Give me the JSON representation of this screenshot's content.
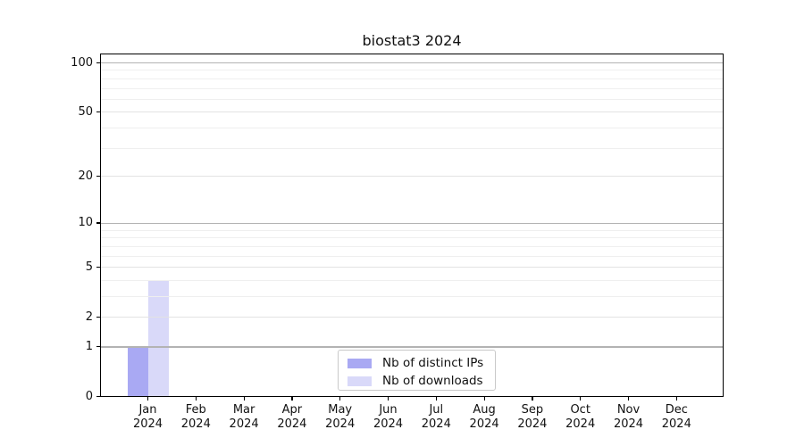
{
  "figure": {
    "title": "biostat3 2024"
  },
  "chart_data": {
    "type": "bar",
    "title": "biostat3 2024",
    "categories": [
      "Jan",
      "Feb",
      "Mar",
      "Apr",
      "May",
      "Jun",
      "Jul",
      "Aug",
      "Sep",
      "Oct",
      "Nov",
      "Dec"
    ],
    "category_year": "2024",
    "series": [
      {
        "name": "Nb of distinct IPs",
        "color": "#a9a9f3",
        "values": [
          1,
          0,
          0,
          0,
          0,
          0,
          0,
          0,
          0,
          0,
          0,
          0
        ]
      },
      {
        "name": "Nb of downloads",
        "color": "#d9d9f9",
        "values": [
          4,
          0,
          0,
          0,
          0,
          0,
          0,
          0,
          0,
          0,
          0,
          0
        ]
      }
    ],
    "xlabel": "",
    "ylabel": "",
    "yscale": "log1p",
    "ylim": [
      0,
      115
    ],
    "yticks_labeled": [
      0,
      1,
      2,
      5,
      10,
      20,
      50,
      100
    ],
    "yticks_minor_grid": [
      3,
      4,
      6,
      7,
      8,
      9,
      30,
      40,
      60,
      70,
      80,
      90
    ],
    "yticks_emphasis_grid": [
      1,
      10,
      100
    ],
    "grid": "horizontal",
    "legend": {
      "position": "bottom-center",
      "entries": [
        "Nb of distinct IPs",
        "Nb of downloads"
      ]
    }
  },
  "colors": {
    "background": "#ffffff",
    "axis": "#000000",
    "grid_major": "#e3e3e3",
    "grid_minor": "#efefef",
    "grid_emphasis": "#b3b3b3",
    "bar_distinct_ips": "#a9a9f3",
    "bar_downloads": "#d9d9f9",
    "legend_border": "#c9c9c9",
    "text": "#111111"
  }
}
